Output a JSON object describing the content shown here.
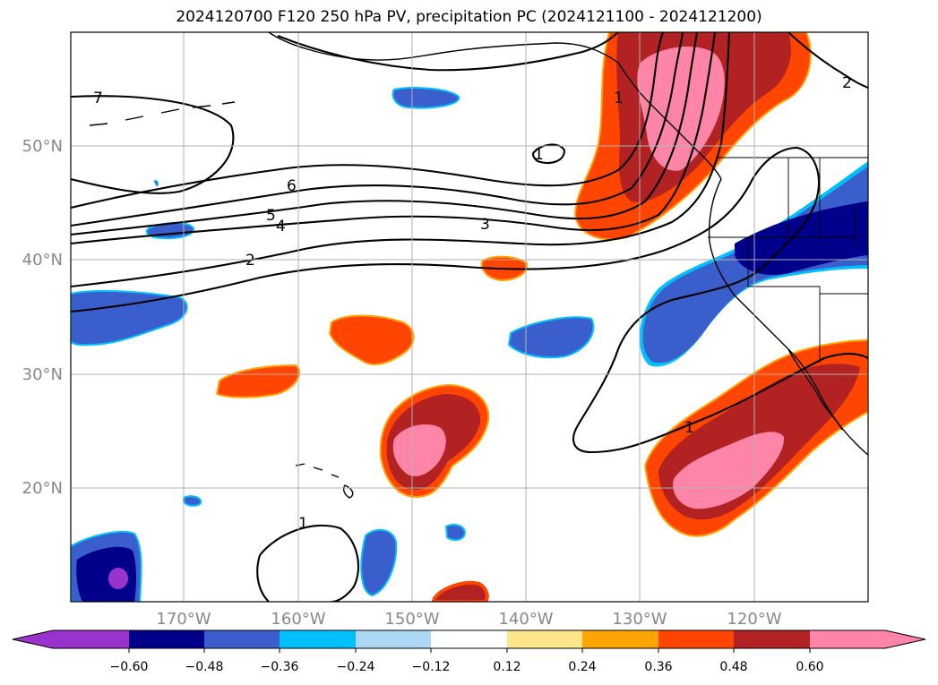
{
  "title": "2024120700 F120 250 hPa PV, precipitation PC (2024121100 - 2024121200)",
  "lat_labels": [
    "50°N",
    "40°N",
    "30°N",
    "20°N"
  ],
  "lon_labels": [
    "170°W",
    "160°W",
    "150°W",
    "140°W",
    "130°W",
    "120°W"
  ],
  "colorbar": {
    "tick_labels": [
      "−0.60",
      "−0.48",
      "−0.36",
      "−0.24",
      "−0.12",
      "0.12",
      "0.24",
      "0.36",
      "0.48",
      "0.60"
    ],
    "colors": [
      "#9933cc",
      "#00008b",
      "#3a5fcd",
      "#00bfff",
      "#add8f5",
      "#ffffff",
      "#fde68a",
      "#ffa500",
      "#ff4500",
      "#b22222",
      "#ff85a8"
    ]
  },
  "contour_labels": [
    "7",
    "6",
    "5",
    "4",
    "3",
    "2",
    "1",
    "1",
    "1",
    "1",
    "2"
  ],
  "colors": {
    "neg_extreme": "#9933cc",
    "neg_strong": "#00008b",
    "neg_mid": "#3a5fcd",
    "neg_weak": "#00bfff",
    "pos_weak": "#ff4500",
    "pos_mid": "#b22222",
    "pos_strong": "#ff85a8",
    "grid": "#b0b0b0",
    "tick_text": "#888888"
  }
}
